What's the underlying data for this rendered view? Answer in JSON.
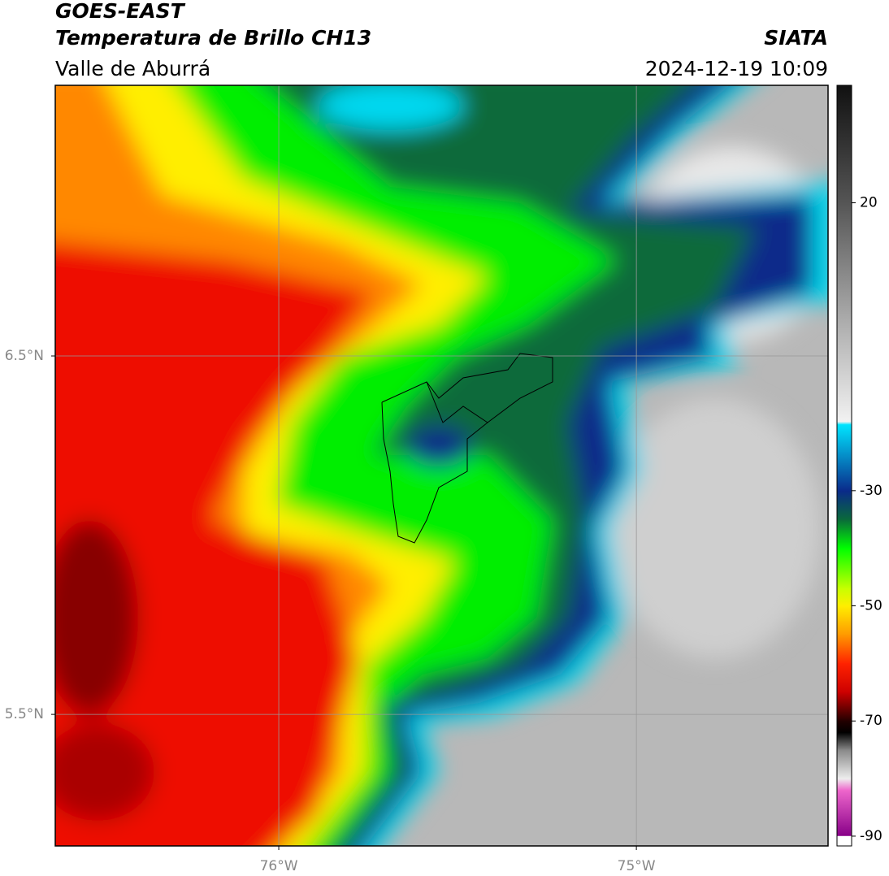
{
  "header": {
    "title": "GOES-EAST",
    "subtitle": "Temperatura de Brillo CH13",
    "region": "Valle de Aburrá",
    "source": "SIATA",
    "datetime": "2024-12-19 10:09"
  },
  "map": {
    "xlim": [
      -76.625,
      -74.464
    ],
    "ylim": [
      5.133,
      7.255
    ],
    "grid": true,
    "xticks": [
      {
        "value": -76,
        "label": "76°W"
      },
      {
        "value": -75,
        "label": "75°W"
      }
    ],
    "yticks": [
      {
        "value": 6.5,
        "label": "6.5°N"
      },
      {
        "value": 5.5,
        "label": "5.5°N"
      }
    ],
    "colorbar": {
      "lim": [
        -91.7,
        40.4
      ],
      "ticks": [
        20,
        -30,
        -50,
        -70,
        -90
      ],
      "stops": [
        {
          "value": 40.4,
          "color": "#111111"
        },
        {
          "value": 20,
          "color": "#555555"
        },
        {
          "value": 0,
          "color": "#aaaaaa"
        },
        {
          "value": -18,
          "color": "#f2f2f2"
        },
        {
          "value": -18.5,
          "color": "#00e5ff"
        },
        {
          "value": -30,
          "color": "#0a2a8a"
        },
        {
          "value": -35,
          "color": "#0a6a3a"
        },
        {
          "value": -40,
          "color": "#00ff00"
        },
        {
          "value": -47,
          "color": "#c8ff00"
        },
        {
          "value": -50,
          "color": "#ffee00"
        },
        {
          "value": -55,
          "color": "#ff9900"
        },
        {
          "value": -60,
          "color": "#ff2200"
        },
        {
          "value": -65,
          "color": "#cc0000"
        },
        {
          "value": -70,
          "color": "#220000"
        },
        {
          "value": -72,
          "color": "#000000"
        },
        {
          "value": -75,
          "color": "#888888"
        },
        {
          "value": -80,
          "color": "#eeeeee"
        },
        {
          "value": -82,
          "color": "#ee66cc"
        },
        {
          "value": -89.9,
          "color": "#880088"
        },
        {
          "value": -90,
          "color": "#ffffff"
        },
        {
          "value": -91.7,
          "color": "#ffffff"
        }
      ]
    }
  }
}
